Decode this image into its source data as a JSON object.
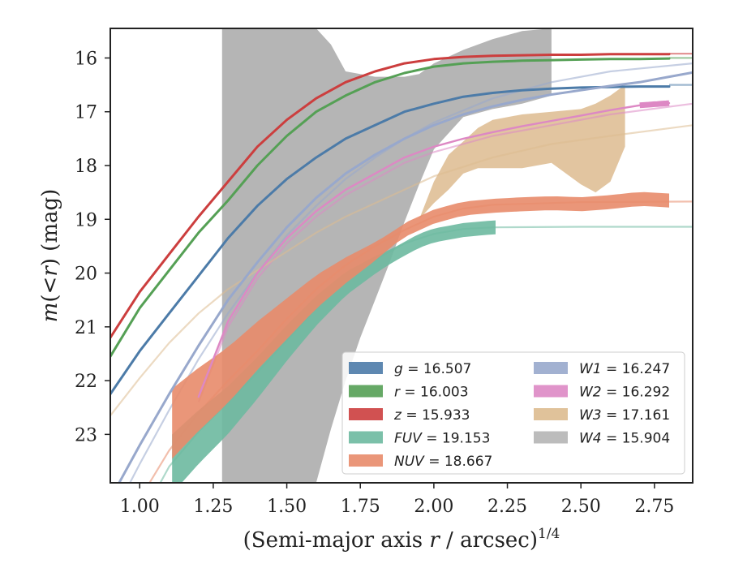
{
  "chart_data": {
    "type": "line",
    "xlabel_main": "(Semi-major axis ",
    "xlabel_var": "r",
    "xlabel_rest": " / arcsec)",
    "xlabel_sup": "1/4",
    "ylabel_m": "m",
    "ylabel_mid": "(<",
    "ylabel_r": "r",
    "ylabel_rest": ") (mag)",
    "xlim": [
      0.9,
      2.88
    ],
    "ylim": [
      23.9,
      15.45
    ],
    "x_ticks": [
      1.0,
      1.25,
      1.5,
      1.75,
      2.0,
      2.25,
      2.5,
      2.75
    ],
    "x_tick_labels": [
      "1.00",
      "1.25",
      "1.50",
      "1.75",
      "2.00",
      "2.25",
      "2.50",
      "2.75"
    ],
    "y_ticks": [
      16,
      17,
      18,
      19,
      20,
      21,
      22,
      23
    ],
    "y_tick_labels": [
      "16",
      "17",
      "18",
      "19",
      "20",
      "21",
      "22",
      "23"
    ],
    "legend_position": "lower-right",
    "series": [
      {
        "name": "g",
        "label_var": "g",
        "label_value": " = 16.507",
        "color": "#4C7BA8",
        "x": [
          0.9,
          1.0,
          1.1,
          1.2,
          1.3,
          1.4,
          1.5,
          1.6,
          1.7,
          1.8,
          1.9,
          2.0,
          2.1,
          2.2,
          2.3,
          2.4,
          2.5,
          2.6,
          2.7,
          2.8
        ],
        "y": [
          22.25,
          21.45,
          20.75,
          20.05,
          19.35,
          18.75,
          18.25,
          17.85,
          17.5,
          17.25,
          17.0,
          16.85,
          16.72,
          16.65,
          16.6,
          16.57,
          16.55,
          16.54,
          16.53,
          16.53
        ],
        "band_x": [
          0.9,
          2.8
        ],
        "model_x": [
          2.8,
          2.88
        ],
        "model_y": [
          16.5,
          16.5
        ]
      },
      {
        "name": "r",
        "label_var": "r",
        "label_value": " = 16.003",
        "color": "#55A055",
        "x": [
          0.9,
          1.0,
          1.1,
          1.2,
          1.3,
          1.4,
          1.5,
          1.6,
          1.7,
          1.8,
          1.9,
          2.0,
          2.1,
          2.2,
          2.3,
          2.4,
          2.5,
          2.6,
          2.7,
          2.8
        ],
        "y": [
          21.55,
          20.65,
          19.95,
          19.25,
          18.65,
          18.0,
          17.45,
          17.0,
          16.7,
          16.45,
          16.28,
          16.16,
          16.1,
          16.07,
          16.05,
          16.04,
          16.03,
          16.02,
          16.02,
          16.01
        ],
        "band_x": [
          0.9,
          2.8
        ],
        "model_x": [
          2.8,
          2.88
        ],
        "model_y": [
          16.0,
          16.0
        ]
      },
      {
        "name": "z",
        "label_var": "z",
        "label_value": " = 15.933",
        "color": "#CC3E3E",
        "x": [
          0.9,
          1.0,
          1.1,
          1.2,
          1.3,
          1.4,
          1.5,
          1.6,
          1.7,
          1.8,
          1.9,
          2.0,
          2.1,
          2.2,
          2.3,
          2.4,
          2.5,
          2.6,
          2.7,
          2.8
        ],
        "y": [
          21.2,
          20.35,
          19.65,
          18.95,
          18.3,
          17.65,
          17.15,
          16.75,
          16.45,
          16.25,
          16.1,
          16.02,
          15.98,
          15.96,
          15.95,
          15.94,
          15.94,
          15.93,
          15.93,
          15.93
        ],
        "band_x": [
          0.9,
          2.8
        ],
        "model_x": [
          2.8,
          2.88
        ],
        "model_y": [
          15.92,
          15.92
        ]
      },
      {
        "name": "FUV",
        "label_var": "FUV",
        "label_value": " = 19.153",
        "color": "#6DB9A0",
        "x": [
          1.11,
          1.2,
          1.3,
          1.4,
          1.5,
          1.6,
          1.7,
          1.8,
          1.9,
          1.95,
          2.0,
          2.1,
          2.2
        ],
        "y": [
          23.55,
          23.05,
          22.55,
          21.95,
          21.3,
          20.7,
          20.2,
          19.85,
          19.55,
          19.4,
          19.3,
          19.2,
          19.15
        ],
        "band_x": [
          1.11,
          2.21
        ],
        "model_x": [
          0.9,
          1.0,
          1.1,
          1.2,
          1.3,
          1.4,
          1.5,
          1.6,
          1.7,
          1.8,
          1.9,
          2.0,
          2.1,
          2.2,
          2.5,
          2.88
        ],
        "model_y": [
          25.8,
          24.6,
          23.6,
          22.95,
          22.4,
          21.85,
          21.25,
          20.65,
          20.15,
          19.75,
          19.45,
          19.27,
          19.18,
          19.15,
          19.14,
          19.14
        ]
      },
      {
        "name": "NUV",
        "label_var": "NUV",
        "label_value": " = 18.667",
        "color": "#E88B6A",
        "x": [
          1.11,
          1.2,
          1.3,
          1.4,
          1.5,
          1.6,
          1.7,
          1.8,
          1.9,
          2.0,
          2.1,
          2.2,
          2.3,
          2.4,
          2.5,
          2.6,
          2.7,
          2.8
        ],
        "y": [
          22.8,
          22.35,
          21.9,
          21.35,
          20.85,
          20.35,
          19.95,
          19.6,
          19.2,
          18.95,
          18.8,
          18.75,
          18.72,
          18.7,
          18.72,
          18.68,
          18.62,
          18.65
        ],
        "band_x": [
          1.11,
          2.8
        ],
        "model_x": [
          0.9,
          1.0,
          1.1,
          1.2,
          1.3,
          1.4,
          1.5,
          1.6,
          1.7,
          1.8,
          1.9,
          2.0,
          2.1,
          2.2,
          2.5,
          2.88
        ],
        "model_y": [
          25.3,
          24.2,
          23.3,
          22.6,
          22.0,
          21.45,
          20.85,
          20.3,
          19.85,
          19.5,
          19.2,
          18.95,
          18.8,
          18.73,
          18.68,
          18.67
        ]
      },
      {
        "name": "W1",
        "label_var": "W1",
        "label_value": " = 16.247",
        "color": "#98A8CC",
        "x": [
          0.9,
          1.0,
          1.1,
          1.2,
          1.3,
          1.4,
          1.5,
          1.6,
          1.7,
          1.8,
          1.9,
          2.0,
          2.1,
          2.2,
          2.3,
          2.4,
          2.5,
          2.6,
          2.7,
          2.8,
          2.88
        ],
        "y": [
          24.2,
          23.2,
          22.25,
          21.35,
          20.5,
          19.8,
          19.15,
          18.6,
          18.15,
          17.8,
          17.5,
          17.25,
          17.05,
          16.9,
          16.78,
          16.68,
          16.6,
          16.52,
          16.45,
          16.35,
          16.27
        ],
        "band_x": [
          0.9,
          2.88
        ],
        "model_x": [
          0.9,
          1.0,
          1.1,
          1.2,
          1.3,
          1.4,
          1.5,
          1.6,
          1.7,
          1.8,
          1.9,
          2.0,
          2.2,
          2.4,
          2.6,
          2.88
        ],
        "model_y": [
          24.6,
          23.55,
          22.55,
          21.6,
          20.75,
          20.0,
          19.3,
          18.75,
          18.25,
          17.85,
          17.5,
          17.2,
          16.75,
          16.45,
          16.25,
          16.1
        ]
      },
      {
        "name": "W2",
        "label_var": "W2",
        "label_value": " = 16.292",
        "color": "#DD88C4",
        "x": [
          1.2,
          1.3,
          1.4,
          1.5,
          1.6,
          1.7,
          1.8,
          1.9,
          2.0,
          2.1,
          2.2,
          2.3,
          2.4,
          2.5,
          2.6,
          2.7,
          2.8
        ],
        "y": [
          22.3,
          20.9,
          20.0,
          19.35,
          18.85,
          18.45,
          18.15,
          17.85,
          17.65,
          17.5,
          17.38,
          17.27,
          17.17,
          17.07,
          16.97,
          16.88,
          16.84
        ],
        "band_x": [
          2.7,
          2.8
        ],
        "model_x": [
          1.2,
          1.3,
          1.4,
          1.5,
          1.6,
          1.7,
          1.8,
          1.9,
          2.0,
          2.2,
          2.4,
          2.6,
          2.88
        ],
        "model_y": [
          22.4,
          21.0,
          20.1,
          19.45,
          18.95,
          18.55,
          18.25,
          17.95,
          17.75,
          17.45,
          17.25,
          17.05,
          16.85
        ]
      },
      {
        "name": "W3",
        "label_var": "W3",
        "label_value": " = 17.161",
        "color": "#DDBB8F",
        "band_x": [
          1.95,
          2.0,
          2.05,
          2.1,
          2.15,
          2.2,
          2.3,
          2.4,
          2.5,
          2.55,
          2.6,
          2.65
        ],
        "band_upper": [
          19.0,
          18.3,
          17.8,
          17.55,
          17.3,
          17.15,
          17.05,
          17.0,
          16.95,
          16.85,
          16.7,
          16.5
        ],
        "band_lower": [
          19.0,
          18.7,
          18.45,
          18.15,
          18.05,
          18.05,
          18.05,
          17.95,
          18.35,
          18.5,
          18.3,
          17.65
        ],
        "model_x": [
          0.9,
          1.0,
          1.1,
          1.2,
          1.3,
          1.4,
          1.5,
          1.6,
          1.7,
          1.8,
          1.9,
          2.0,
          2.2,
          2.4,
          2.6,
          2.88
        ],
        "model_y": [
          22.65,
          21.95,
          21.3,
          20.75,
          20.3,
          19.95,
          19.6,
          19.25,
          18.95,
          18.7,
          18.45,
          18.2,
          17.85,
          17.6,
          17.45,
          17.25
        ]
      },
      {
        "name": "W4",
        "label_var": "W4",
        "label_value": " = 15.904",
        "color": "#B5B5B5",
        "band_x": [
          1.28,
          1.35,
          1.45,
          1.55,
          1.6,
          1.65,
          1.7,
          1.75,
          1.8,
          1.85,
          1.9,
          1.95,
          2.0,
          2.1,
          2.2,
          2.3,
          2.4
        ],
        "band_upper": [
          15.45,
          15.45,
          15.45,
          15.45,
          15.45,
          15.75,
          16.25,
          16.3,
          16.35,
          16.35,
          16.35,
          16.3,
          16.1,
          15.85,
          15.65,
          15.5,
          15.45
        ],
        "band_lower": [
          23.9,
          23.9,
          23.9,
          23.9,
          23.9,
          22.9,
          22.0,
          21.2,
          20.5,
          19.8,
          19.05,
          18.35,
          17.7,
          17.1,
          16.95,
          16.85,
          16.7
        ],
        "model_x": [],
        "model_y": []
      }
    ]
  }
}
